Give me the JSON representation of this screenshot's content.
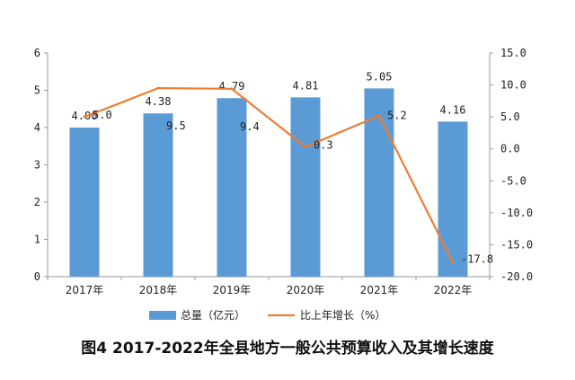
{
  "chart_data": {
    "type": "bar+line",
    "title": "图4 2017-2022年全县地方一般公共预算收入及其增长速度",
    "categories": [
      "2017年",
      "2018年",
      "2019年",
      "2020年",
      "2021年",
      "2022年"
    ],
    "series": [
      {
        "name": "总量（亿元）",
        "type": "bar",
        "axis": "left",
        "color": "#5b9bd5",
        "values": [
          4.0,
          4.38,
          4.79,
          4.81,
          5.05,
          4.16
        ],
        "labels": [
          "4.00",
          "4.38",
          "4.79",
          "4.81",
          "5.05",
          "4.16"
        ]
      },
      {
        "name": "比上年增长（%）",
        "type": "line",
        "axis": "right",
        "color": "#ed7d31",
        "values": [
          5.0,
          9.5,
          9.4,
          0.3,
          5.2,
          -17.8
        ],
        "labels": [
          "5.0",
          "9.5",
          "9.4",
          "0.3",
          "5.2",
          "-17.8"
        ]
      }
    ],
    "left_axis": {
      "ylim": [
        0,
        6
      ],
      "ticks": [
        0,
        1,
        2,
        3,
        4,
        5,
        6
      ],
      "tick_labels": [
        "0",
        "1",
        "2",
        "3",
        "4",
        "5",
        "6"
      ]
    },
    "right_axis": {
      "ylim": [
        -20,
        15
      ],
      "ticks": [
        15,
        10,
        5,
        0,
        -5,
        -10,
        -15,
        -20
      ],
      "tick_labels": [
        "15.0",
        "10.0",
        "5.0",
        "0.0",
        "-5.0",
        "-10.0",
        "-15.0",
        "-20.0"
      ]
    },
    "legend": {
      "position": "bottom"
    },
    "grid": false
  }
}
